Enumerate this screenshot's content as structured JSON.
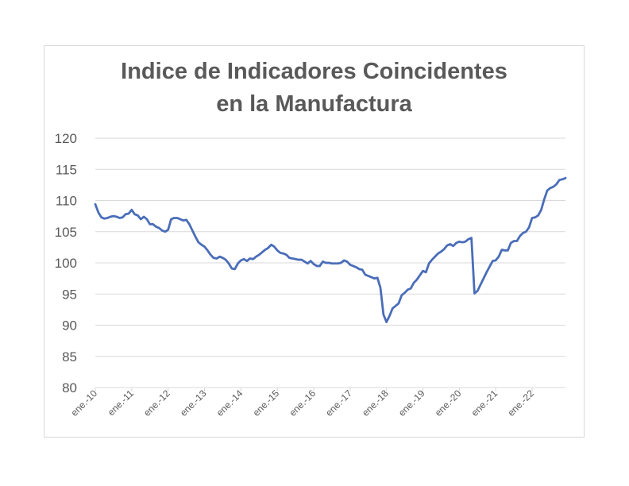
{
  "chart_data": {
    "type": "line",
    "title": [
      "Indice de Indicadores Coincidentes",
      "en la Manufactura"
    ],
    "xlabel": "",
    "ylabel": "",
    "ylim": [
      80,
      120
    ],
    "yticks": [
      "80",
      "85",
      "90",
      "95",
      "100",
      "105",
      "110",
      "115",
      "120"
    ],
    "xticks": [
      "ene.-10",
      "ene.-11",
      "ene.-12",
      "ene.-13",
      "ene.-14",
      "ene.-15",
      "ene.-16",
      "ene.-17",
      "ene.-18",
      "ene.-19",
      "ene.-20",
      "ene.-21",
      "ene.-22"
    ],
    "grid": true,
    "legend": "none",
    "line_color": "#4a6db8",
    "series": [
      {
        "values": [
          109.4,
          108.1,
          107.3,
          107.1,
          107.2,
          107.4,
          107.5,
          107.4,
          107.2,
          107.3,
          107.8,
          107.9,
          108.5,
          107.8,
          107.6,
          107.0,
          107.4,
          107.0,
          106.2,
          106.2,
          105.8,
          105.6,
          105.2,
          105.0,
          105.3,
          107.0,
          107.2,
          107.2,
          107.0,
          106.8,
          106.9,
          106.2,
          105.2,
          104.2,
          103.3,
          102.9,
          102.6,
          102.0,
          101.3,
          100.8,
          100.7,
          101.0,
          100.8,
          100.5,
          99.9,
          99.1,
          99.0,
          99.9,
          100.4,
          100.6,
          100.3,
          100.7,
          100.6,
          101.0,
          101.3,
          101.7,
          102.1,
          102.4,
          102.9,
          102.6,
          102.0,
          101.6,
          101.5,
          101.3,
          100.8,
          100.7,
          100.6,
          100.5,
          100.5,
          100.2,
          99.9,
          100.3,
          99.8,
          99.5,
          99.5,
          100.2,
          100.0,
          100.0,
          99.9,
          99.9,
          99.9,
          100.0,
          100.4,
          100.2,
          99.7,
          99.5,
          99.3,
          99.0,
          98.9,
          98.1,
          97.9,
          97.7,
          97.5,
          97.6,
          96.0,
          91.7,
          90.5,
          91.5,
          92.7,
          93.1,
          93.5,
          94.8,
          95.2,
          95.7,
          95.9,
          96.8,
          97.3,
          98.0,
          98.7,
          98.5,
          99.9,
          100.5,
          101.0,
          101.5,
          101.8,
          102.2,
          102.8,
          103.0,
          102.7,
          103.2,
          103.4,
          103.3,
          103.4,
          103.8,
          104.0,
          95.1,
          95.5,
          96.5,
          97.5,
          98.5,
          99.4,
          100.3,
          100.4,
          101.0,
          102.1,
          102.0,
          102.0,
          103.2,
          103.5,
          103.5,
          104.3,
          104.8,
          105.0,
          105.7,
          107.2,
          107.3,
          107.6,
          108.5,
          110.2,
          111.6,
          112.0,
          112.2,
          112.6,
          113.3,
          113.4,
          113.6
        ]
      }
    ]
  }
}
